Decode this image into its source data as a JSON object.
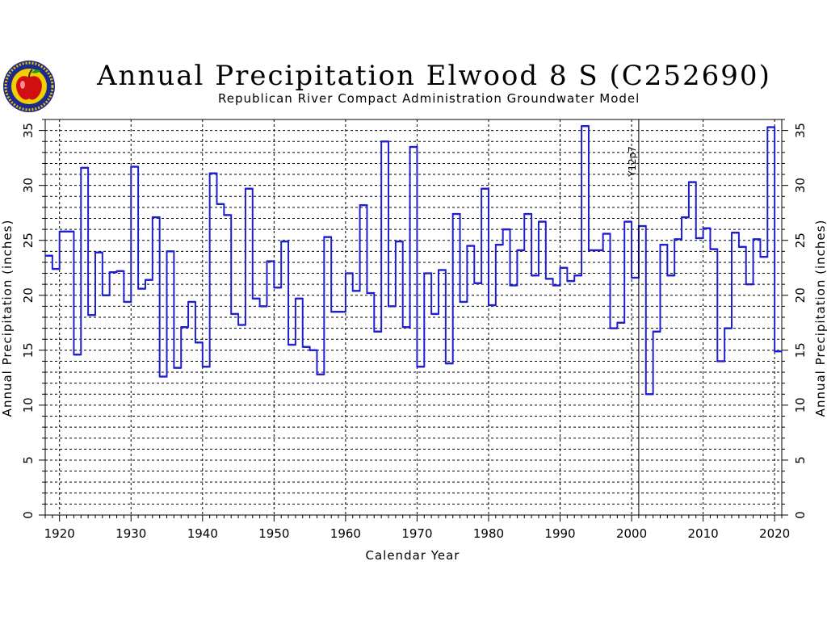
{
  "header": {
    "title": "Annual Precipitation Elwood 8 S (C252690)",
    "subtitle": "Republican River Compact Administration Groundwater Model"
  },
  "logo": {
    "icon": "apple-seal-icon"
  },
  "chart_data": {
    "type": "line",
    "style": "step",
    "title": "Annual Precipitation Elwood 8 S (C252690)",
    "subtitle": "Republican River Compact Administration Groundwater Model",
    "xlabel": "Calendar Year",
    "ylabel": "Annual Precipitation (inches)",
    "ylabel_right": "Annual Precipitation (inches)",
    "xlim": [
      1918,
      2021
    ],
    "ylim": [
      0,
      36
    ],
    "xticks": [
      1920,
      1930,
      1940,
      1950,
      1960,
      1970,
      1980,
      1990,
      2000,
      2010,
      2020
    ],
    "yticks": [
      0,
      5,
      10,
      15,
      20,
      25,
      30,
      35
    ],
    "grid": true,
    "annotation": {
      "x": 2001,
      "label": "Y12p7"
    },
    "colors": {
      "series": "#1f1fd0",
      "grid": "#000000"
    },
    "x": [
      1918,
      1919,
      1920,
      1921,
      1922,
      1923,
      1924,
      1925,
      1926,
      1927,
      1928,
      1929,
      1930,
      1931,
      1932,
      1933,
      1934,
      1935,
      1936,
      1937,
      1938,
      1939,
      1940,
      1941,
      1942,
      1943,
      1944,
      1945,
      1946,
      1947,
      1948,
      1949,
      1950,
      1951,
      1952,
      1953,
      1954,
      1955,
      1956,
      1957,
      1958,
      1959,
      1960,
      1961,
      1962,
      1963,
      1964,
      1965,
      1966,
      1967,
      1968,
      1969,
      1970,
      1971,
      1972,
      1973,
      1974,
      1975,
      1976,
      1977,
      1978,
      1979,
      1980,
      1981,
      1982,
      1983,
      1984,
      1985,
      1986,
      1987,
      1988,
      1989,
      1990,
      1991,
      1992,
      1993,
      1994,
      1995,
      1996,
      1997,
      1998,
      1999,
      2000,
      2001,
      2002,
      2003,
      2004,
      2005,
      2006,
      2007,
      2008,
      2009,
      2010,
      2011,
      2012,
      2013,
      2014,
      2015,
      2016,
      2017,
      2018,
      2019,
      2020
    ],
    "values": [
      23.6,
      22.4,
      25.8,
      25.8,
      14.6,
      31.6,
      18.2,
      23.9,
      20.0,
      22.1,
      22.2,
      19.4,
      31.7,
      20.6,
      21.4,
      27.1,
      12.6,
      24.0,
      13.4,
      17.1,
      19.4,
      15.7,
      13.5,
      31.1,
      28.3,
      27.3,
      18.3,
      17.3,
      29.7,
      19.7,
      19.0,
      23.1,
      20.7,
      24.9,
      15.5,
      19.7,
      15.3,
      15.0,
      12.8,
      25.3,
      18.5,
      18.5,
      22.0,
      20.4,
      28.2,
      20.2,
      16.7,
      34.0,
      19.0,
      24.9,
      17.1,
      33.5,
      13.5,
      22.0,
      18.3,
      22.3,
      13.8,
      27.4,
      19.4,
      24.5,
      21.1,
      29.7,
      19.1,
      24.6,
      26.0,
      20.9,
      24.1,
      27.4,
      21.8,
      26.7,
      21.5,
      20.9,
      22.5,
      21.3,
      21.8,
      35.4,
      24.1,
      24.1,
      25.6,
      17.0,
      17.5,
      26.7,
      21.6,
      26.3,
      11.0,
      16.7,
      24.6,
      21.8,
      25.1,
      27.1,
      30.3,
      25.2,
      26.1,
      24.2,
      14.0,
      17.0,
      25.7,
      24.4,
      21.0,
      25.1,
      23.5,
      35.3,
      14.9
    ]
  }
}
